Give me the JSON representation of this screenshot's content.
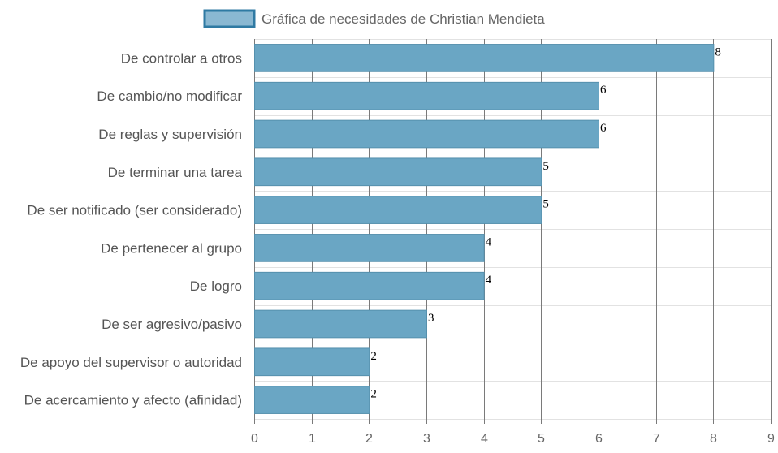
{
  "chart_data": {
    "type": "bar",
    "orientation": "horizontal",
    "legend_position": "top",
    "grid": true,
    "categories": [
      "De controlar a otros",
      "De cambio/no modificar",
      "De reglas y supervisión",
      "De terminar una tarea",
      "De ser notificado (ser considerado)",
      "De pertenecer al grupo",
      "De logro",
      "De ser agresivo/pasivo",
      "De apoyo del supervisor o autoridad",
      "De acercamiento y afecto (afinidad)"
    ],
    "series": [
      {
        "name": "Gráfica de necesidades de Christian Mendieta",
        "values": [
          8,
          6,
          6,
          5,
          5,
          4,
          4,
          3,
          2,
          2
        ]
      }
    ],
    "x_ticks": [
      "0",
      "1",
      "2",
      "3",
      "4",
      "5",
      "6",
      "7",
      "8",
      "9"
    ],
    "xlim": [
      0,
      9
    ],
    "colors": {
      "bar_fill": "#6aa6c4",
      "bar_stroke": "#5590ad",
      "legend_fill": "#8ab8d2",
      "legend_stroke": "#2f7aa3",
      "grid_vertical": "#7a7a7a",
      "grid_horizontal": "#e2e2e2"
    }
  }
}
